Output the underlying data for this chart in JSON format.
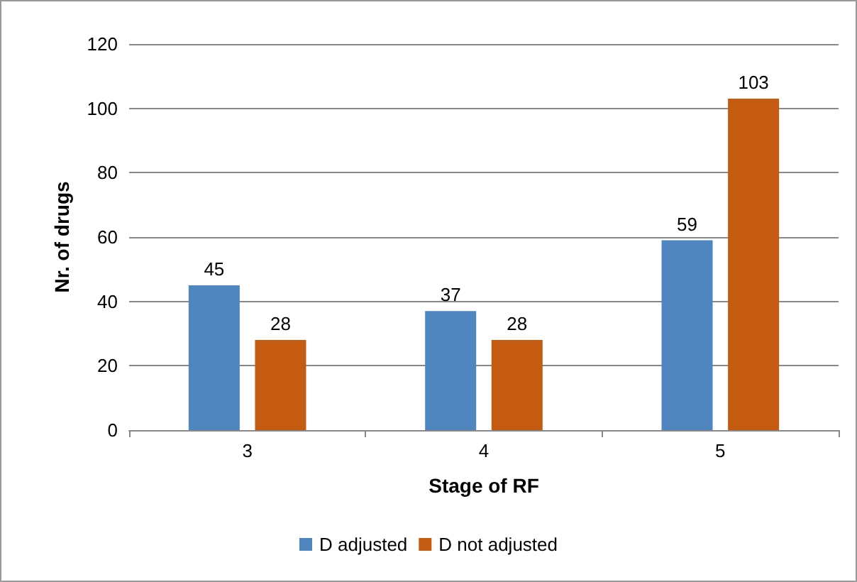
{
  "chart_data": {
    "type": "bar",
    "xlabel": "Stage of RF",
    "ylabel": "Nr. of drugs",
    "categories": [
      "3",
      "4",
      "5"
    ],
    "series": [
      {
        "name": "D adjusted",
        "color": "#4f86c0",
        "values": [
          45,
          37,
          59
        ]
      },
      {
        "name": "D not adjusted",
        "color": "#c55a11",
        "values": [
          28,
          28,
          103
        ]
      }
    ],
    "ylim": [
      0,
      120
    ],
    "yticks": [
      0,
      20,
      40,
      60,
      80,
      100,
      120
    ],
    "grid": "y",
    "legend": "bottom",
    "data_labels": true
  }
}
